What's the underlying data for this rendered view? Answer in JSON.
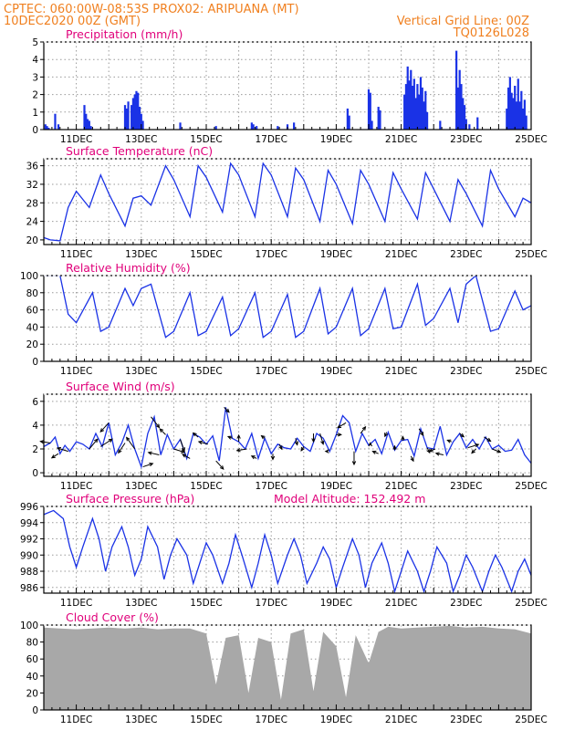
{
  "header": {
    "line1": "CPTEC:   060:00W-08:53S   PROX02: ARIPUANA (MT)",
    "line2_left": "10DEC2020 00Z (GMT)",
    "line2_right": "Vertical Grid Line: 00Z",
    "line3_right": "TQ0126L028"
  },
  "colors": {
    "header": "#f08020",
    "title": "#e0007a",
    "series": "#1a32e6",
    "cloud": "#a8a8a8"
  },
  "x_ticks": [
    "11DEC",
    "13DEC",
    "15DEC",
    "17DEC",
    "19DEC",
    "21DEC",
    "23DEC",
    "25DEC"
  ],
  "chart_data": [
    {
      "type": "bar",
      "title": "Precipitation (mm/h)",
      "ylim": [
        0,
        5
      ],
      "yticks": [
        0,
        1,
        2,
        3,
        4,
        5
      ],
      "x_days": [
        10.05,
        10.1,
        10.15,
        10.35,
        10.45,
        11.25,
        11.3,
        11.35,
        11.4,
        11.45,
        12.5,
        12.55,
        12.6,
        12.7,
        12.75,
        12.8,
        12.85,
        12.9,
        12.95,
        13.0,
        13.05,
        14.2,
        15.3,
        16.4,
        16.45,
        16.55,
        17.2,
        17.5,
        17.7,
        19.35,
        19.4,
        20.0,
        20.05,
        20.1,
        20.3,
        20.35,
        21.1,
        21.15,
        21.2,
        21.25,
        21.3,
        21.35,
        21.4,
        21.45,
        21.5,
        21.55,
        21.6,
        21.65,
        21.7,
        21.75,
        21.8,
        22.2,
        22.7,
        22.75,
        22.8,
        22.85,
        22.9,
        22.95,
        23.0,
        23.1,
        23.35,
        24.25,
        24.3,
        24.35,
        24.4,
        24.45,
        24.5,
        24.55,
        24.6,
        24.65,
        24.7,
        24.75,
        24.8,
        24.85
      ],
      "values": [
        0.3,
        0.2,
        0.1,
        0.9,
        0.3,
        1.4,
        0.9,
        0.6,
        0.5,
        0.2,
        1.4,
        1.2,
        1.6,
        1.4,
        1.8,
        2.0,
        2.2,
        2.1,
        1.3,
        0.9,
        0.5,
        0.4,
        0.2,
        0.4,
        0.3,
        0.2,
        0.2,
        0.3,
        0.4,
        1.2,
        0.8,
        2.3,
        2.1,
        0.5,
        1.3,
        1.1,
        2.0,
        2.6,
        3.6,
        2.8,
        3.4,
        2.5,
        2.9,
        1.8,
        2.6,
        2.0,
        3.0,
        2.4,
        1.6,
        2.2,
        1.0,
        0.5,
        4.5,
        2.4,
        3.4,
        2.6,
        1.8,
        1.4,
        0.6,
        0.3,
        0.7,
        1.2,
        2.4,
        3.0,
        2.1,
        1.8,
        2.5,
        1.6,
        2.9,
        1.6,
        2.2,
        1.2,
        1.7,
        0.8
      ]
    },
    {
      "type": "line",
      "title": "Surface Temperature (nC)",
      "ylim": [
        19,
        37.5
      ],
      "yticks": [
        20,
        24,
        28,
        32,
        36
      ],
      "x": [
        10,
        10.2,
        10.5,
        10.75,
        11.0,
        11.4,
        11.75,
        12.0,
        12.5,
        12.75,
        13.0,
        13.3,
        13.75,
        14.0,
        14.5,
        14.75,
        15.0,
        15.5,
        15.75,
        16.0,
        16.5,
        16.75,
        17.0,
        17.5,
        17.75,
        18.0,
        18.5,
        18.75,
        19.0,
        19.5,
        19.75,
        20.0,
        20.5,
        20.75,
        21.0,
        21.5,
        21.75,
        22.0,
        22.5,
        22.75,
        23.0,
        23.5,
        23.75,
        24.0,
        24.5,
        24.75,
        25.0
      ],
      "values": [
        20.5,
        20.0,
        19.8,
        27,
        30.5,
        27,
        34,
        30,
        23,
        29,
        29.5,
        27.5,
        36,
        33,
        25,
        36,
        33.5,
        26,
        36.5,
        34,
        25,
        36.5,
        34,
        25,
        35.5,
        33,
        24,
        35,
        32,
        23.5,
        35,
        32,
        24,
        34.5,
        31,
        24.5,
        34.5,
        31,
        24,
        33,
        30,
        23,
        35,
        31,
        25,
        29,
        28
      ]
    },
    {
      "type": "line",
      "title": "Relative Humidity (%)",
      "ylim": [
        0,
        100
      ],
      "yticks": [
        0,
        20,
        40,
        60,
        80,
        100
      ],
      "x": [
        10,
        10.5,
        10.75,
        11.0,
        11.5,
        11.75,
        12.0,
        12.5,
        12.75,
        13.0,
        13.3,
        13.75,
        14.0,
        14.5,
        14.75,
        15.0,
        15.5,
        15.75,
        16.0,
        16.5,
        16.75,
        17.0,
        17.5,
        17.75,
        18.0,
        18.5,
        18.75,
        19.0,
        19.5,
        19.75,
        20.0,
        20.5,
        20.75,
        21.0,
        21.5,
        21.75,
        22.0,
        22.5,
        22.75,
        23.0,
        23.3,
        23.75,
        24.0,
        24.5,
        24.75,
        25.0
      ],
      "values": [
        100,
        100,
        55,
        45,
        80,
        35,
        40,
        85,
        65,
        85,
        90,
        28,
        35,
        80,
        30,
        35,
        75,
        30,
        38,
        80,
        28,
        35,
        78,
        28,
        35,
        85,
        32,
        40,
        85,
        30,
        38,
        85,
        38,
        40,
        90,
        42,
        50,
        85,
        45,
        90,
        100,
        35,
        38,
        82,
        60,
        65
      ]
    },
    {
      "type": "line",
      "title": "Surface Wind (m/s)",
      "ylim": [
        -0.3,
        6.6
      ],
      "yticks": [
        0,
        2,
        4,
        6
      ],
      "x": [
        10,
        10.2,
        10.35,
        10.5,
        10.65,
        10.8,
        11.0,
        11.2,
        11.4,
        11.6,
        11.8,
        12.0,
        12.2,
        12.4,
        12.6,
        12.8,
        13.0,
        13.2,
        13.4,
        13.6,
        13.8,
        14.0,
        14.2,
        14.4,
        14.6,
        14.8,
        15.0,
        15.2,
        15.4,
        15.6,
        15.8,
        16.0,
        16.2,
        16.4,
        16.6,
        16.8,
        17.0,
        17.2,
        17.4,
        17.6,
        17.8,
        18.0,
        18.2,
        18.4,
        18.6,
        18.8,
        19.0,
        19.2,
        19.4,
        19.6,
        19.8,
        20.0,
        20.2,
        20.4,
        20.6,
        20.8,
        21.0,
        21.2,
        21.4,
        21.6,
        21.8,
        22.0,
        22.2,
        22.4,
        22.6,
        22.8,
        23.0,
        23.2,
        23.4,
        23.6,
        23.8,
        24.0,
        24.2,
        24.4,
        24.6,
        24.8,
        25.0
      ],
      "values": [
        2.2,
        2.5,
        3.0,
        1.6,
        2.3,
        1.8,
        2.6,
        2.4,
        2.0,
        3.3,
        2.2,
        4.2,
        1.5,
        2.5,
        4.0,
        2.0,
        0.5,
        3.3,
        4.7,
        1.5,
        3.2,
        2.0,
        2.8,
        1.2,
        3.3,
        3.0,
        2.4,
        3.1,
        1.0,
        5.5,
        2.9,
        2.6,
        2.0,
        3.3,
        1.2,
        2.9,
        1.6,
        2.4,
        2.1,
        2.0,
        2.9,
        2.2,
        1.8,
        3.3,
        2.9,
        1.8,
        3.2,
        4.8,
        4.2,
        1.8,
        3.3,
        2.3,
        2.8,
        1.6,
        3.4,
        1.9,
        2.7,
        2.8,
        1.4,
        3.7,
        2.1,
        2.0,
        3.9,
        1.5,
        2.6,
        3.3,
        2.1,
        2.8,
        2.0,
        3.0,
        2.0,
        2.3,
        1.8,
        1.9,
        2.8,
        1.5,
        0.8
      ],
      "arrows": {
        "x": [
          10.2,
          10.45,
          10.75,
          11.4,
          11.75,
          12.0,
          12.5,
          12.8,
          13.05,
          13.3,
          13.55,
          13.75,
          14.0,
          14.2,
          14.5,
          14.75,
          15.05,
          15.3,
          15.55,
          15.8,
          16.0,
          16.25,
          16.55,
          16.8,
          17.05,
          17.25,
          17.75,
          18.0,
          18.3,
          18.5,
          18.75,
          19.0,
          19.3,
          19.55,
          19.75,
          20.05,
          20.3,
          20.55,
          20.8,
          21.05,
          21.3,
          21.55,
          21.8,
          22.05,
          22.3,
          22.55,
          22.8,
          23.05,
          23.3,
          23.55,
          23.8
        ],
        "u": [
          -1.2,
          -0.8,
          -1.3,
          1.0,
          1.4,
          -1.0,
          -0.8,
          -1.0,
          1.2,
          1.0,
          -1.3,
          -0.7,
          1.3,
          0.5,
          -0.9,
          -0.6,
          -1.1,
          0.9,
          0.6,
          -0.5,
          0.0,
          -1.2,
          -0.6,
          -0.4,
          0.0,
          0.3,
          0.2,
          -0.3,
          0.0,
          0.4,
          -0.3,
          0.6,
          -1.0,
          0.0,
          0.6,
          0.0,
          -0.7,
          -0.2,
          0.0,
          0.0,
          0.3,
          0.5,
          0.3,
          -0.7,
          -0.9,
          -0.5,
          0.5,
          1.3,
          -0.5,
          0.8,
          1.0
        ],
        "v": [
          0.2,
          -0.5,
          0.4,
          1.2,
          0.9,
          -1.1,
          -1.2,
          1.4,
          0.4,
          -1.3,
          0.3,
          0.7,
          -0.4,
          -1.4,
          0.5,
          0.5,
          0.3,
          -1.0,
          -0.6,
          0.2,
          0.8,
          -0.2,
          0.3,
          0.3,
          -0.7,
          -0.6,
          -0.8,
          -0.5,
          -1.0,
          -1.3,
          0.0,
          0.0,
          -0.6,
          -1.6,
          0.8,
          0.3,
          0.3,
          -0.5,
          0.5,
          0.5,
          -0.6,
          -0.8,
          -0.6,
          -0.3,
          0.2,
          0.2,
          -0.4,
          0.4,
          -0.5,
          -0.5,
          -0.4
        ]
      }
    },
    {
      "type": "line",
      "title": "Surface Pressure (hPa)",
      "subtitle": "Model Altitude: 152.492 m",
      "ylim": [
        985.3,
        996
      ],
      "yticks": [
        986,
        988,
        990,
        992,
        994,
        996
      ],
      "x": [
        10,
        10.3,
        10.6,
        10.8,
        11.0,
        11.2,
        11.5,
        11.7,
        11.9,
        12.1,
        12.4,
        12.6,
        12.8,
        13.0,
        13.2,
        13.5,
        13.7,
        13.9,
        14.1,
        14.4,
        14.6,
        14.8,
        15.0,
        15.2,
        15.5,
        15.7,
        15.9,
        16.1,
        16.4,
        16.6,
        16.8,
        17.0,
        17.2,
        17.5,
        17.7,
        17.9,
        18.1,
        18.4,
        18.6,
        18.8,
        19.0,
        19.2,
        19.5,
        19.7,
        19.9,
        20.1,
        20.4,
        20.6,
        20.8,
        21.0,
        21.2,
        21.5,
        21.7,
        21.9,
        22.1,
        22.4,
        22.6,
        22.8,
        23.0,
        23.2,
        23.5,
        23.7,
        23.9,
        24.1,
        24.4,
        24.6,
        24.8,
        25.0
      ],
      "values": [
        995,
        995.5,
        994.5,
        991,
        988.5,
        991,
        994.5,
        992,
        988,
        991,
        993.5,
        991,
        987.5,
        989.5,
        993.5,
        991,
        987,
        990,
        992,
        990,
        986.5,
        989,
        991.5,
        990,
        986.5,
        989,
        992.5,
        990,
        986,
        989,
        992.5,
        990,
        986.5,
        990,
        992,
        990,
        986.5,
        989,
        991,
        989.5,
        986,
        988.5,
        992,
        990,
        986,
        989,
        991.5,
        989,
        985.5,
        988,
        990.5,
        988,
        985.5,
        988,
        991,
        989,
        985.5,
        987.5,
        990,
        988.5,
        985.5,
        988,
        990,
        988.5,
        985.5,
        988,
        989.5,
        987.5
      ]
    },
    {
      "type": "bar",
      "title": "Cloud Cover (%)",
      "ylim": [
        0,
        100
      ],
      "yticks": [
        0,
        20,
        40,
        60,
        80,
        100
      ],
      "x_days": [
        10,
        10.5,
        11,
        11.5,
        12,
        12.5,
        13,
        13.5,
        14,
        14.5,
        15,
        15.3,
        15.6,
        16,
        16.3,
        16.6,
        17,
        17.3,
        17.6,
        18,
        18.3,
        18.6,
        19,
        19.3,
        19.6,
        20,
        20.3,
        20.6,
        21,
        21.5,
        22,
        22.5,
        23,
        23.5,
        24,
        24.5,
        25
      ],
      "values": [
        97,
        96,
        95,
        96,
        97,
        96,
        97,
        95,
        96,
        96,
        90,
        30,
        85,
        88,
        20,
        85,
        80,
        12,
        90,
        95,
        22,
        92,
        75,
        15,
        88,
        55,
        92,
        98,
        96,
        97,
        98,
        99,
        97,
        98,
        96,
        95,
        90
      ]
    }
  ]
}
